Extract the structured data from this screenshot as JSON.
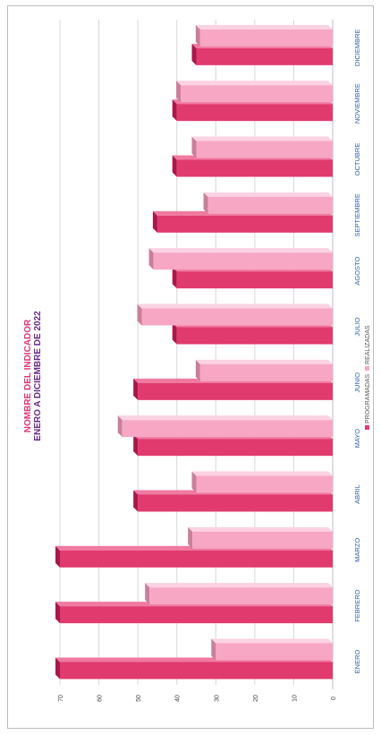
{
  "chart_data": {
    "type": "bar",
    "orientation": "rotated-90-counterclockwise",
    "title": "NOMBRE DEL INDICADOR",
    "subtitle": "ENERO A DICIEMBRE DE 2022",
    "categories": [
      "ENERO",
      "FEBRERO",
      "MARZO",
      "ABRIL",
      "MAYO",
      "JUNIO",
      "JULIO",
      "AGOSTO",
      "SEPTIEMBRE",
      "OCTUBRE",
      "NOVIEMBRE",
      "DICIEMBRE"
    ],
    "series": [
      {
        "name": "PROGRAMADAS",
        "values": [
          70,
          70,
          70,
          50,
          50,
          50,
          40,
          40,
          45,
          40,
          40,
          35
        ],
        "color": "#e03a6e"
      },
      {
        "name": "REALIZADAS",
        "values": [
          30,
          47,
          36,
          35,
          54,
          34,
          49,
          46,
          32,
          35,
          39,
          34
        ],
        "color": "#f7a7c4"
      }
    ],
    "ylim": [
      0,
      70
    ],
    "yticks": [
      "0",
      "10",
      "20",
      "30",
      "40",
      "50",
      "60",
      "70"
    ],
    "grid": true,
    "legend": "top",
    "colors": {
      "title": "#e0357a",
      "subtitle": "#6a2a8a",
      "category_label": "#2f5aa8",
      "grid": "#d8d8d8"
    }
  }
}
